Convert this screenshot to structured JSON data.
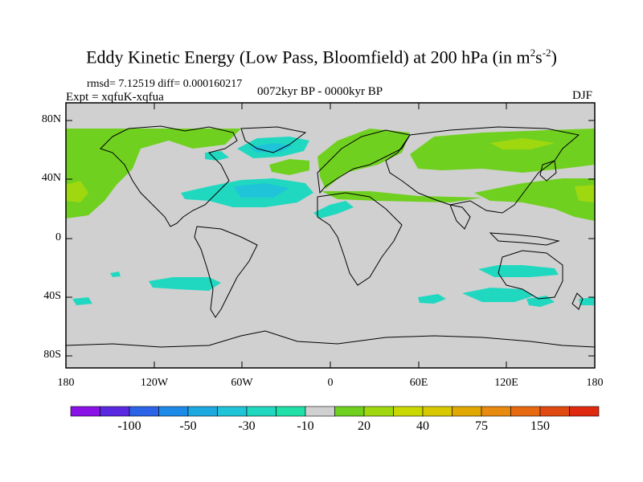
{
  "title": {
    "main": "Eddy Kinetic Energy (Low Pass, Bloomfield) at 200 hPa (in m",
    "sup1": "2",
    "mid": "s",
    "sup2": "-2",
    "close": ")"
  },
  "stats": "rmsd= 7.12519 diff= 0.000160217",
  "experiment": "Expt = xqfuK-xqfua",
  "period": "0072kyr BP - 0000kyr BP",
  "season": "DJF",
  "axes": {
    "y_labels": [
      "80N",
      "40N",
      "0",
      "40S",
      "80S"
    ],
    "x_labels": [
      "180",
      "120W",
      "60W",
      "0",
      "60E",
      "120E",
      "180"
    ]
  },
  "colorbar": {
    "labels": [
      "-100",
      "-50",
      "-30",
      "-10",
      "20",
      "40",
      "75",
      "150"
    ],
    "colors": [
      "#8a12e6",
      "#5a28e0",
      "#2c64e8",
      "#1e8ae8",
      "#1ea8e0",
      "#20c4d8",
      "#20d8c0",
      "#20e0a8",
      "#d0d0d0",
      "#70d020",
      "#a0d810",
      "#c8d800",
      "#d8c800",
      "#e0a800",
      "#e88a10",
      "#e86a10",
      "#e04a10",
      "#e02a10"
    ]
  },
  "colors": {
    "background_field": "#d0d0d0",
    "positive_light": "#70d020",
    "positive_mid": "#a0d810",
    "negative_light": "#20d8c0",
    "negative_mid": "#20c4d8"
  }
}
